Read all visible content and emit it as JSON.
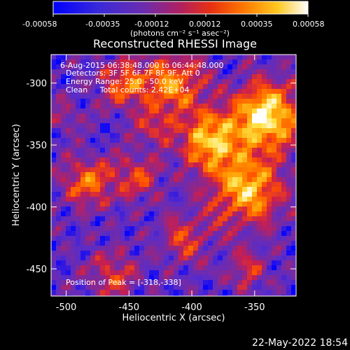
{
  "colorbar": {
    "ticks": [
      "-0.00058",
      "-0.00035",
      "-0.00012",
      "0.00012",
      "0.00035",
      "0.00058"
    ],
    "units": "(photons cm⁻² s⁻¹ asec⁻²)",
    "colors": [
      "#0000ff",
      "#5a2cc8",
      "#7a2aa0",
      "#c81e50",
      "#ff5000",
      "#ff9a00",
      "#ffe040",
      "#ffffff"
    ]
  },
  "title": "Reconstructed RHESSI Image",
  "annotations": {
    "time": "6-Aug-2015 06:38:48.000 to 06:44:48.000",
    "detectors": "Detectors: 3F 5F 6F 7F 8F 9F, Att 0",
    "energy": "Energy Range: 25.0 - 50.0 keV",
    "clean": "Clean     Total counts: 2.42E+04",
    "peak": "Position of Peak = [-318,-338]"
  },
  "footer_date": "22-May-2022 18:54",
  "chart_data": {
    "type": "heatmap",
    "title": "Reconstructed RHESSI Image",
    "xlabel": "Heliocentric X (arcsec)",
    "ylabel": "Heliocentric Y (arcsec)",
    "xlim": [
      -512,
      -317
    ],
    "ylim": [
      -472,
      -277
    ],
    "xticks": [
      "-500",
      "-450",
      "-400",
      "-350"
    ],
    "xtick_values": [
      -500,
      -450,
      -400,
      -350
    ],
    "yticks": [
      "-300",
      "-350",
      "-400",
      "-450"
    ],
    "ytick_values": [
      -300,
      -350,
      -400,
      -450
    ],
    "color_range": [
      -0.00058,
      0.00058
    ],
    "peak": [
      -318,
      -338
    ],
    "grid": false
  }
}
